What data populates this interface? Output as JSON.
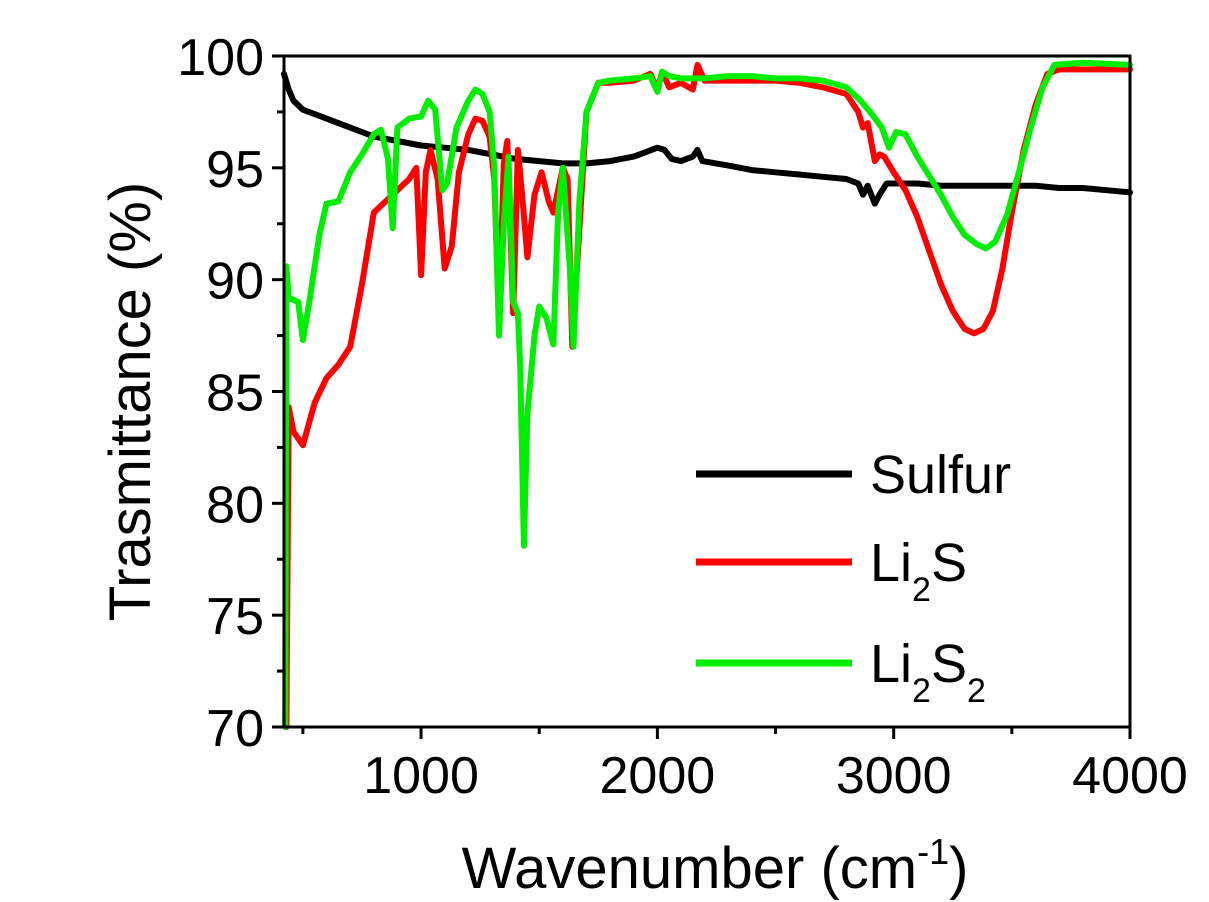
{
  "chart_data": {
    "type": "line",
    "xlabel": "Wavenumber",
    "xlabel_unit": {
      "open": " (cm",
      "sup": "-1",
      "close": ")"
    },
    "ylabel": "Trasmittance (%)",
    "xlim": [
      420,
      4000
    ],
    "ylim": [
      70,
      100
    ],
    "x_ticks": [
      1000,
      2000,
      3000,
      4000
    ],
    "x_tick_labels": [
      "1000",
      "2000",
      "3000",
      "4000"
    ],
    "y_ticks": [
      70,
      75,
      80,
      85,
      90,
      95,
      100
    ],
    "y_tick_labels": [
      "70",
      "75",
      "80",
      "85",
      "90",
      "95",
      "100"
    ],
    "grid": false,
    "legend_position": "lower-right",
    "series": [
      {
        "name": "Sulfur",
        "label_parts": [
          {
            "t": "Sulfur"
          }
        ],
        "color": "#000000",
        "points": [
          [
            420,
            99.2
          ],
          [
            440,
            98.5
          ],
          [
            460,
            98.0
          ],
          [
            480,
            97.8
          ],
          [
            500,
            97.6
          ],
          [
            600,
            97.2
          ],
          [
            700,
            96.8
          ],
          [
            800,
            96.4
          ],
          [
            900,
            96.2
          ],
          [
            1000,
            96.0
          ],
          [
            1100,
            95.9
          ],
          [
            1200,
            95.8
          ],
          [
            1300,
            95.6
          ],
          [
            1400,
            95.4
          ],
          [
            1500,
            95.3
          ],
          [
            1600,
            95.2
          ],
          [
            1700,
            95.2
          ],
          [
            1800,
            95.3
          ],
          [
            1900,
            95.5
          ],
          [
            1950,
            95.7
          ],
          [
            2000,
            95.9
          ],
          [
            2030,
            95.8
          ],
          [
            2060,
            95.4
          ],
          [
            2100,
            95.3
          ],
          [
            2150,
            95.5
          ],
          [
            2170,
            95.8
          ],
          [
            2190,
            95.3
          ],
          [
            2300,
            95.1
          ],
          [
            2400,
            94.9
          ],
          [
            2500,
            94.8
          ],
          [
            2600,
            94.7
          ],
          [
            2700,
            94.6
          ],
          [
            2800,
            94.5
          ],
          [
            2850,
            94.3
          ],
          [
            2870,
            93.8
          ],
          [
            2890,
            94.2
          ],
          [
            2920,
            93.4
          ],
          [
            2940,
            93.8
          ],
          [
            2970,
            94.3
          ],
          [
            3100,
            94.3
          ],
          [
            3200,
            94.2
          ],
          [
            3300,
            94.2
          ],
          [
            3400,
            94.2
          ],
          [
            3500,
            94.2
          ],
          [
            3600,
            94.2
          ],
          [
            3700,
            94.1
          ],
          [
            3800,
            94.1
          ],
          [
            3900,
            94.0
          ],
          [
            4000,
            93.9
          ]
        ]
      },
      {
        "name": "Li2S",
        "label_parts": [
          {
            "t": "Li"
          },
          {
            "t": "2",
            "sub": true
          },
          {
            "t": "S"
          }
        ],
        "color": "#ff0000",
        "points": [
          [
            430,
            70.0
          ],
          [
            440,
            84.3
          ],
          [
            460,
            83.2
          ],
          [
            500,
            82.6
          ],
          [
            550,
            84.5
          ],
          [
            600,
            85.6
          ],
          [
            650,
            86.2
          ],
          [
            700,
            87.0
          ],
          [
            750,
            89.8
          ],
          [
            800,
            93.0
          ],
          [
            850,
            93.5
          ],
          [
            900,
            94.0
          ],
          [
            950,
            94.5
          ],
          [
            980,
            95.0
          ],
          [
            1000,
            90.2
          ],
          [
            1020,
            94.8
          ],
          [
            1040,
            95.8
          ],
          [
            1070,
            94.5
          ],
          [
            1100,
            90.5
          ],
          [
            1130,
            91.5
          ],
          [
            1160,
            94.8
          ],
          [
            1200,
            96.5
          ],
          [
            1230,
            97.2
          ],
          [
            1260,
            97.1
          ],
          [
            1290,
            96.4
          ],
          [
            1310,
            94.5
          ],
          [
            1330,
            88.0
          ],
          [
            1350,
            95.2
          ],
          [
            1365,
            96.2
          ],
          [
            1390,
            88.5
          ],
          [
            1410,
            95.8
          ],
          [
            1430,
            93.5
          ],
          [
            1450,
            91.0
          ],
          [
            1480,
            93.8
          ],
          [
            1510,
            94.8
          ],
          [
            1540,
            93.5
          ],
          [
            1560,
            93.0
          ],
          [
            1600,
            95.0
          ],
          [
            1620,
            94.5
          ],
          [
            1640,
            87.0
          ],
          [
            1660,
            90.5
          ],
          [
            1700,
            97.5
          ],
          [
            1750,
            98.8
          ],
          [
            1800,
            98.8
          ],
          [
            1900,
            98.9
          ],
          [
            1970,
            99.2
          ],
          [
            2000,
            98.5
          ],
          [
            2020,
            99.3
          ],
          [
            2050,
            98.6
          ],
          [
            2100,
            98.8
          ],
          [
            2150,
            98.5
          ],
          [
            2170,
            99.6
          ],
          [
            2200,
            98.9
          ],
          [
            2300,
            98.9
          ],
          [
            2400,
            98.9
          ],
          [
            2500,
            98.9
          ],
          [
            2600,
            98.8
          ],
          [
            2700,
            98.6
          ],
          [
            2800,
            98.3
          ],
          [
            2850,
            97.5
          ],
          [
            2870,
            96.8
          ],
          [
            2890,
            97.0
          ],
          [
            2920,
            95.3
          ],
          [
            2940,
            95.6
          ],
          [
            2960,
            95.5
          ],
          [
            3000,
            94.8
          ],
          [
            3050,
            94.0
          ],
          [
            3100,
            92.8
          ],
          [
            3150,
            91.3
          ],
          [
            3200,
            89.8
          ],
          [
            3250,
            88.6
          ],
          [
            3300,
            87.8
          ],
          [
            3340,
            87.6
          ],
          [
            3380,
            87.8
          ],
          [
            3420,
            88.6
          ],
          [
            3460,
            90.5
          ],
          [
            3500,
            93.0
          ],
          [
            3550,
            95.8
          ],
          [
            3600,
            97.8
          ],
          [
            3650,
            99.2
          ],
          [
            3700,
            99.4
          ],
          [
            3800,
            99.4
          ],
          [
            4000,
            99.4
          ]
        ]
      },
      {
        "name": "Li2S2",
        "label_parts": [
          {
            "t": "Li"
          },
          {
            "t": "2",
            "sub": true
          },
          {
            "t": "S"
          },
          {
            "t": "2",
            "sub": true
          }
        ],
        "color": "#00ee00",
        "points": [
          [
            425,
            70.0
          ],
          [
            430,
            90.6
          ],
          [
            440,
            89.2
          ],
          [
            480,
            89.0
          ],
          [
            500,
            87.3
          ],
          [
            530,
            89.2
          ],
          [
            570,
            92.0
          ],
          [
            600,
            93.4
          ],
          [
            650,
            93.5
          ],
          [
            700,
            94.8
          ],
          [
            750,
            95.6
          ],
          [
            800,
            96.5
          ],
          [
            830,
            96.7
          ],
          [
            860,
            95.4
          ],
          [
            880,
            92.3
          ],
          [
            900,
            96.8
          ],
          [
            950,
            97.2
          ],
          [
            1000,
            97.3
          ],
          [
            1030,
            98.0
          ],
          [
            1060,
            97.6
          ],
          [
            1090,
            94.0
          ],
          [
            1110,
            94.3
          ],
          [
            1150,
            96.8
          ],
          [
            1200,
            98.0
          ],
          [
            1230,
            98.5
          ],
          [
            1260,
            98.3
          ],
          [
            1290,
            97.5
          ],
          [
            1310,
            95.0
          ],
          [
            1330,
            87.5
          ],
          [
            1350,
            92.5
          ],
          [
            1370,
            95.5
          ],
          [
            1390,
            89.0
          ],
          [
            1410,
            88.5
          ],
          [
            1420,
            86.0
          ],
          [
            1435,
            78.1
          ],
          [
            1450,
            84.0
          ],
          [
            1480,
            87.5
          ],
          [
            1500,
            88.8
          ],
          [
            1530,
            88.3
          ],
          [
            1560,
            87.1
          ],
          [
            1580,
            93.0
          ],
          [
            1600,
            95.0
          ],
          [
            1630,
            90.5
          ],
          [
            1645,
            87.0
          ],
          [
            1670,
            93.5
          ],
          [
            1700,
            97.5
          ],
          [
            1750,
            98.8
          ],
          [
            1800,
            98.9
          ],
          [
            1900,
            99.0
          ],
          [
            1970,
            99.1
          ],
          [
            2000,
            98.4
          ],
          [
            2020,
            99.3
          ],
          [
            2050,
            99.1
          ],
          [
            2100,
            99.0
          ],
          [
            2200,
            99.0
          ],
          [
            2300,
            99.1
          ],
          [
            2400,
            99.1
          ],
          [
            2500,
            99.0
          ],
          [
            2600,
            99.0
          ],
          [
            2700,
            98.9
          ],
          [
            2800,
            98.6
          ],
          [
            2860,
            98.0
          ],
          [
            2900,
            97.5
          ],
          [
            2950,
            96.8
          ],
          [
            2980,
            95.9
          ],
          [
            3010,
            96.6
          ],
          [
            3050,
            96.5
          ],
          [
            3100,
            95.5
          ],
          [
            3200,
            93.8
          ],
          [
            3250,
            92.8
          ],
          [
            3300,
            92.0
          ],
          [
            3350,
            91.6
          ],
          [
            3390,
            91.4
          ],
          [
            3430,
            91.7
          ],
          [
            3480,
            92.9
          ],
          [
            3530,
            94.8
          ],
          [
            3580,
            96.8
          ],
          [
            3630,
            98.6
          ],
          [
            3680,
            99.6
          ],
          [
            3800,
            99.7
          ],
          [
            4000,
            99.6
          ]
        ]
      }
    ]
  }
}
